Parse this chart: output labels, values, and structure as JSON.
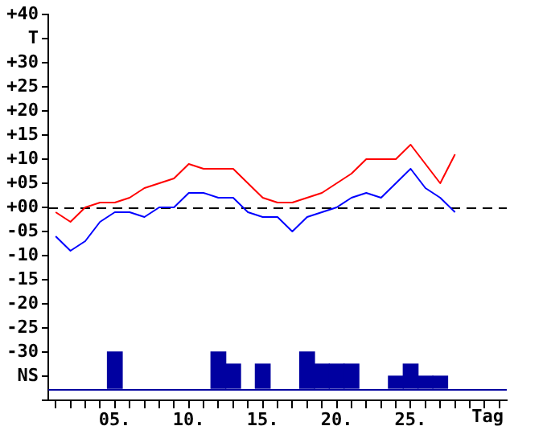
{
  "chart_data": {
    "type": "line",
    "xlabel": "Tag",
    "categories": [
      null,
      null,
      null,
      null,
      "05.",
      null,
      null,
      null,
      null,
      "10.",
      null,
      null,
      null,
      null,
      "15.",
      null,
      null,
      null,
      null,
      "20.",
      null,
      null,
      null,
      null,
      "25.",
      null,
      null,
      null,
      null,
      null,
      null
    ],
    "ylim": [
      -40,
      40
    ],
    "yticks": [
      {
        "value": 40,
        "label": "+40"
      },
      {
        "value": 35,
        "label": "T"
      },
      {
        "value": 30,
        "label": "+30"
      },
      {
        "value": 25,
        "label": "+25"
      },
      {
        "value": 20,
        "label": "+20"
      },
      {
        "value": 15,
        "label": "+15"
      },
      {
        "value": 10,
        "label": "+10"
      },
      {
        "value": 5,
        "label": "+05"
      },
      {
        "value": 0,
        "label": "+00"
      },
      {
        "value": -5,
        "label": "-05"
      },
      {
        "value": -10,
        "label": "-10"
      },
      {
        "value": -15,
        "label": "-15"
      },
      {
        "value": -20,
        "label": "-20"
      },
      {
        "value": -25,
        "label": "-25"
      },
      {
        "value": -30,
        "label": "-30"
      },
      {
        "value": -35,
        "label": "NS"
      },
      {
        "value": -40,
        "label": null
      }
    ],
    "grid": false,
    "legend": false,
    "marker": "none",
    "series": [
      {
        "color": "#ff0000",
        "values": [
          -1,
          -3,
          0,
          1,
          1,
          2,
          4,
          5,
          6,
          9,
          8,
          8,
          8,
          5,
          2,
          1,
          1,
          2,
          3,
          5,
          7,
          10,
          10,
          10,
          13,
          9,
          5,
          11,
          null,
          null,
          null
        ]
      },
      {
        "color": "#0000ff",
        "values": [
          -6,
          -9,
          -7,
          -3,
          -1,
          -1,
          -2,
          0,
          0,
          3,
          3,
          2,
          2,
          -1,
          -2,
          -2,
          -5,
          -2,
          -1,
          0,
          2,
          3,
          2,
          5,
          8,
          4,
          2,
          -1,
          null,
          null,
          null
        ]
      },
      {
        "type": "bar",
        "color": "#0000a0",
        "base": [
          null,
          null,
          null,
          null,
          -37.5,
          null,
          null,
          null,
          null,
          null,
          null,
          -37.5,
          -37.5,
          null,
          -37.5,
          null,
          null,
          -37.5,
          -37.5,
          -37.5,
          -37.5,
          null,
          null,
          -37.5,
          -37.5,
          -37.5,
          -37.5,
          null,
          null,
          null,
          null
        ],
        "values": [
          null,
          null,
          null,
          null,
          7.5,
          null,
          null,
          null,
          null,
          null,
          null,
          7.5,
          5,
          null,
          5,
          null,
          null,
          7.5,
          5,
          5,
          5,
          null,
          null,
          2.5,
          5,
          2.5,
          2.5,
          null,
          null,
          null,
          null
        ]
      }
    ],
    "ref_lines": [
      {
        "axis": "y",
        "value": 0,
        "line_style": "dashed",
        "color": "#000000"
      },
      {
        "axis": "y",
        "value": -37.5,
        "line_style": "solid",
        "color": "#0000a0"
      }
    ]
  }
}
